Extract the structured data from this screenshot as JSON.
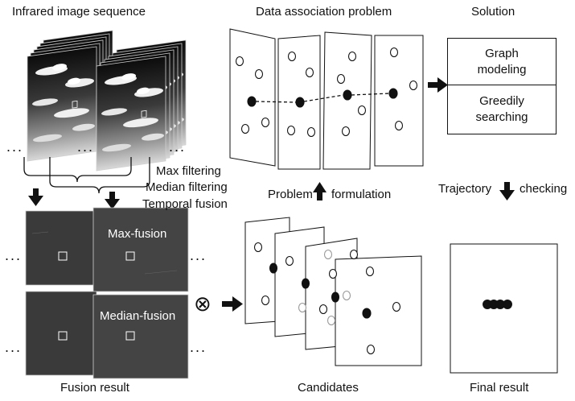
{
  "headers": {
    "infrared_sequence": "Infrared image sequence",
    "data_association": "Data association problem",
    "solution": "Solution"
  },
  "solution": {
    "graph_modeling": "Graph modeling",
    "greedily_searching": "Greedily searching"
  },
  "filtering": {
    "max": "Max filtering",
    "median": "Median filtering",
    "temporal": "Temporal fusion"
  },
  "fusion": {
    "max_label": "Max-fusion",
    "median_label": "Median-fusion",
    "caption": "Fusion result"
  },
  "arrows": {
    "problem": "Problem",
    "formulation": "formulation",
    "trajectory": "Trajectory",
    "checking": "checking"
  },
  "captions": {
    "candidates": "Candidates",
    "final_result": "Final result"
  },
  "ellipsis": "...",
  "operator_symbol": "⊗"
}
